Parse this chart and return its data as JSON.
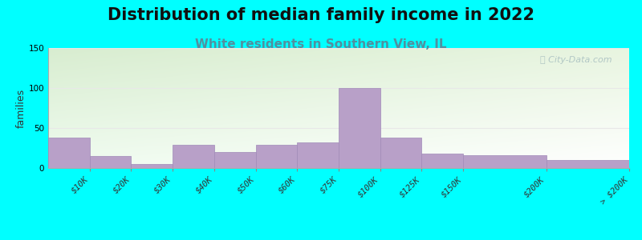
{
  "title": "Distribution of median family income in 2022",
  "subtitle": "White residents in Southern View, IL",
  "ylabel": "families",
  "categories": [
    "$10K",
    "$20K",
    "$30K",
    "$40K",
    "$50K",
    "$60K",
    "$75K",
    "$100K",
    "$125K",
    "$150K",
    "$200K",
    "> $200K"
  ],
  "values": [
    38,
    15,
    5,
    29,
    20,
    29,
    32,
    100,
    38,
    18,
    16,
    10
  ],
  "bar_widths": [
    1,
    1,
    1,
    1,
    1,
    1,
    1,
    1,
    1,
    1,
    2,
    2
  ],
  "bar_color": "#b8a0c8",
  "bar_edge_color": "#a08ab8",
  "ylim": [
    0,
    150
  ],
  "yticks": [
    0,
    50,
    100,
    150
  ],
  "bg_color": "#00ffff",
  "plot_bg_top_left": "#d8edd0",
  "plot_bg_bottom_right": "#f8fef8",
  "title_fontsize": 15,
  "subtitle_fontsize": 11,
  "subtitle_color": "#5090a0",
  "ylabel_fontsize": 9,
  "tick_fontsize": 7.5,
  "watermark_text": "ⓘ City-Data.com",
  "watermark_color": "#a8bfc0",
  "grid_color": "#e8e8e8"
}
